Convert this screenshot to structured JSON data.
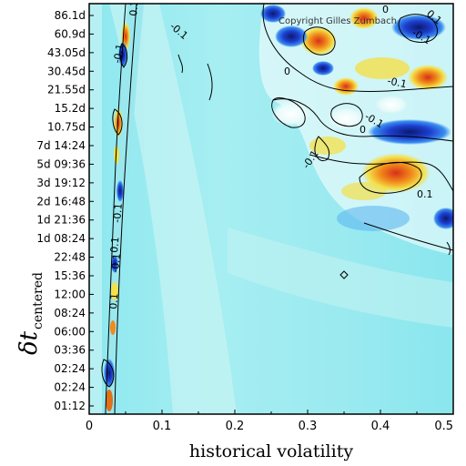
{
  "chart_data": {
    "type": "heatmap",
    "title": "",
    "xlabel": "historical volatility",
    "ylabel_symbol": "δt",
    "ylabel_subscript": "centered",
    "xlim": [
      0,
      0.5
    ],
    "x_ticks": [
      0,
      0.1,
      0.2,
      0.3,
      0.4,
      0.5
    ],
    "x_tick_labels": [
      "0",
      "0.1",
      "0.2",
      "0.3",
      "0.4",
      "0.5"
    ],
    "y_tick_labels": [
      "86.1d",
      "60.9d",
      "43.05d",
      "30.45d",
      "21.55d",
      "15.2d",
      "10.75d",
      "7d 14:24",
      "5d 09:36",
      "3d 19:12",
      "2d 16:48",
      "1d 21:36",
      "1d 08:24",
      "22:48",
      "15:36",
      "12:00",
      "08:24",
      "06:00",
      "03:36",
      "02:24",
      "02:24",
      "01:12"
    ],
    "contour_labels": [
      "0",
      "-0.1",
      "0.1",
      "-0.1",
      "0",
      "-0.1",
      "-0.1",
      "0",
      "-0.1",
      "0.1",
      "-0.1",
      "0.1",
      "0.1",
      "-0.1",
      "-0.1",
      "0.1"
    ],
    "annotation": "Copyright Gilles Zumbach",
    "colors": {
      "background": "#8ee8ef",
      "light": "#c8f4f4",
      "blue": "#1e3fd0",
      "navy": "#0a1a70",
      "red": "#d8301a",
      "orange": "#f08a1a",
      "yellow": "#f4e04a",
      "white": "#ffffff"
    }
  }
}
